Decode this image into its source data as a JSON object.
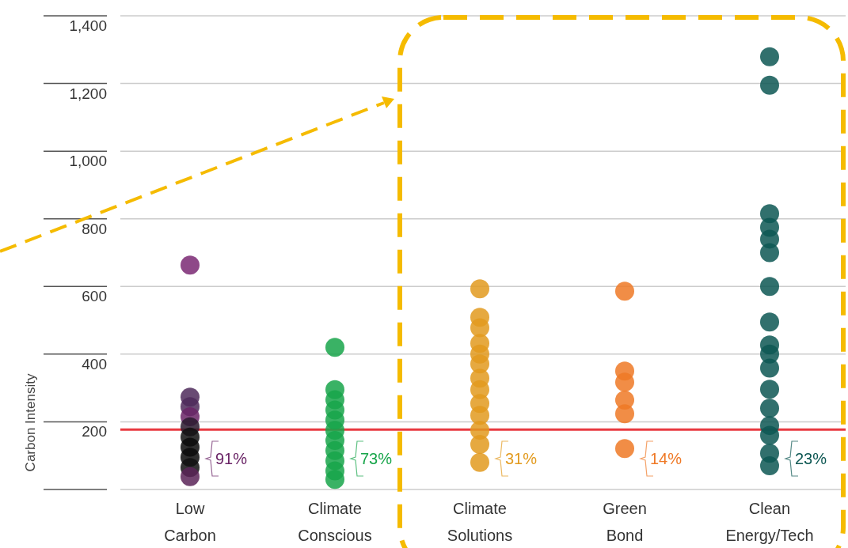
{
  "chart_data": {
    "type": "scatter",
    "ylabel": "Carbon Intensity",
    "categories": [
      "Low Carbon",
      "Climate Conscious",
      "Climate Solutions",
      "Green Bond",
      "Clean Energy/Tech"
    ],
    "ylim": [
      0,
      1400
    ],
    "yticks": [
      {
        "value": 0,
        "label": null
      },
      {
        "value": 200,
        "label": "200"
      },
      {
        "value": 400,
        "label": "400"
      },
      {
        "value": 600,
        "label": "600"
      },
      {
        "value": 800,
        "label": "800"
      },
      {
        "value": 1000,
        "label": "1,000"
      },
      {
        "value": 1200,
        "label": "1,200"
      },
      {
        "value": 1400,
        "label": "1,400"
      }
    ],
    "grid": "y",
    "marker": "circle",
    "series": [
      {
        "color": "#6a2466",
        "colors": [
          "#7a2873",
          "#4e2a5a",
          "#4e2a5a",
          "#6a2466",
          "#2a1a2e",
          "#111111",
          "#0a0a0a",
          "#0a0a0a",
          "#111111",
          "#5a2458"
        ],
        "x": [
          "Low Carbon",
          "Low Carbon",
          "Low Carbon",
          "Low Carbon",
          "Low Carbon",
          "Low Carbon",
          "Low Carbon",
          "Low Carbon",
          "Low Carbon",
          "Low Carbon"
        ],
        "values": [
          663,
          273,
          245,
          215,
          185,
          155,
          125,
          95,
          65,
          38
        ]
      },
      {
        "color": "#17a54a",
        "x": [
          "Climate Conscious",
          "Climate Conscious",
          "Climate Conscious",
          "Climate Conscious",
          "Climate Conscious",
          "Climate Conscious",
          "Climate Conscious",
          "Climate Conscious",
          "Climate Conscious",
          "Climate Conscious",
          "Climate Conscious"
        ],
        "values": [
          420,
          295,
          265,
          235,
          205,
          175,
          145,
          115,
          85,
          55,
          30
        ]
      },
      {
        "color": "#e29a1e",
        "x": [
          "Climate Solutions",
          "Climate Solutions",
          "Climate Solutions",
          "Climate Solutions",
          "Climate Solutions",
          "Climate Solutions",
          "Climate Solutions",
          "Climate Solutions",
          "Climate Solutions",
          "Climate Solutions",
          "Climate Solutions",
          "Climate Solutions",
          "Climate Solutions"
        ],
        "values": [
          593,
          509,
          478,
          432,
          400,
          371,
          329,
          295,
          254,
          219,
          175,
          133,
          80
        ]
      },
      {
        "color": "#ef7926",
        "x": [
          "Green Bond",
          "Green Bond",
          "Green Bond",
          "Green Bond",
          "Green Bond",
          "Green Bond"
        ],
        "values": [
          586,
          350,
          317,
          264,
          224,
          121
        ]
      },
      {
        "color": "#0d5753",
        "x": [
          "Clean Energy/Tech",
          "Clean Energy/Tech",
          "Clean Energy/Tech",
          "Clean Energy/Tech",
          "Clean Energy/Tech",
          "Clean Energy/Tech",
          "Clean Energy/Tech",
          "Clean Energy/Tech",
          "Clean Energy/Tech",
          "Clean Energy/Tech",
          "Clean Energy/Tech",
          "Clean Energy/Tech",
          "Clean Energy/Tech",
          "Clean Energy/Tech",
          "Clean Energy/Tech",
          "Clean Energy/Tech",
          "Clean Energy/Tech"
        ],
        "values": [
          1279,
          1195,
          815,
          775,
          740,
          700,
          600,
          495,
          427,
          400,
          359,
          296,
          240,
          189,
          160,
          107,
          70
        ]
      }
    ],
    "ref_lines": [
      {
        "axis": "y",
        "value": 177,
        "color": "#e8393f"
      }
    ],
    "annotations": [
      "91%",
      "73%",
      "31%",
      "14%",
      "23%"
    ]
  }
}
